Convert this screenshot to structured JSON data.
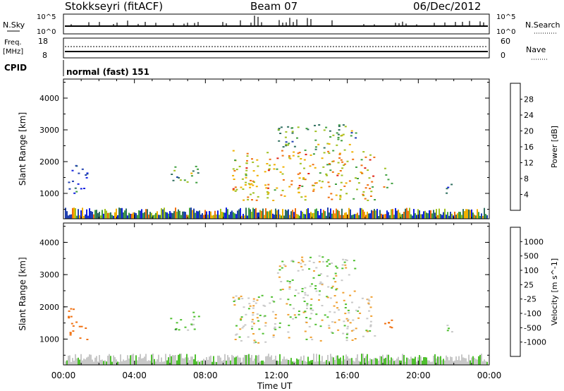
{
  "header": {
    "station": "Stokkseyri (fitACF)",
    "beam": "Beam 07",
    "date": "06/Dec/2012"
  },
  "top_panels": {
    "nsky_label": "N.Sky",
    "nsky_ticks": [
      "10^5",
      "10^0"
    ],
    "nsearch_label": "N.Search",
    "nsearch_ticks": [
      "10^5",
      "10^0"
    ],
    "freq_label_1": "Freq.",
    "freq_label_2": "[MHz]",
    "freq_ticks": [
      "18",
      "8"
    ],
    "nave_label": "Nave",
    "nave_ticks": [
      "60",
      "0"
    ],
    "cpid_label": "CPID",
    "cpid_text": "normal (fast) 151"
  },
  "chart_data": [
    {
      "type": "heatmap",
      "title": "",
      "xlabel": "Time UT",
      "ylabel": "Slant Range [km]",
      "x_ticks": [
        "00:00",
        "04:00",
        "08:00",
        "12:00",
        "16:00",
        "20:00",
        "00:00"
      ],
      "y_ticks": [
        "1000",
        "2000",
        "3000",
        "4000"
      ],
      "ylim": [
        200,
        4600
      ],
      "colorbar": {
        "label": "Power [dB]",
        "ticks": [
          "4",
          "8",
          "12",
          "16",
          "20",
          "24",
          "28"
        ],
        "colors": [
          "#1020e0",
          "#2040b0",
          "#307060",
          "#40a040",
          "#a0c020",
          "#f0b000",
          "#f07010",
          "#e02010"
        ]
      },
      "series": [
        {
          "name": "Power",
          "regions": [
            {
              "t": [
                0.2,
                1.3
              ],
              "r": [
                1000,
                2000
              ],
              "value": 6
            },
            {
              "t": [
                6.0,
                7.6
              ],
              "r": [
                1300,
                1900
              ],
              "value": 14
            },
            {
              "t": [
                9.5,
                17.5
              ],
              "r": [
                800,
                2400
              ],
              "value": 22
            },
            {
              "t": [
                12.0,
                16.5
              ],
              "r": [
                2400,
                3200
              ],
              "value": 14
            },
            {
              "t": [
                18.0,
                18.5
              ],
              "r": [
                1200,
                1900
              ],
              "value": 18
            },
            {
              "t": [
                21.5,
                22.0
              ],
              "r": [
                1000,
                1500
              ],
              "value": 6
            }
          ]
        }
      ]
    },
    {
      "type": "heatmap",
      "title": "",
      "xlabel": "Time UT",
      "ylabel": "Slant Range [km]",
      "x_ticks": [
        "00:00",
        "04:00",
        "08:00",
        "12:00",
        "16:00",
        "20:00",
        "00:00"
      ],
      "y_ticks": [
        "1000",
        "2000",
        "3000",
        "4000"
      ],
      "ylim": [
        200,
        4600
      ],
      "colorbar": {
        "label": "Velocity [m s^-1]",
        "ticks": [
          "1000",
          "500",
          "100",
          "25",
          "-25",
          "-100",
          "-500",
          "-1000"
        ],
        "colors": [
          "#2030c0",
          "#305090",
          "#307040",
          "#50c030",
          "#c8c8c8",
          "#f0a030",
          "#f07010",
          "#e03010",
          "#e00010"
        ]
      },
      "series": [
        {
          "name": "Velocity",
          "regions": [
            {
              "t": [
                0.2,
                1.3
              ],
              "r": [
                1000,
                2000
              ],
              "value": -200
            },
            {
              "t": [
                6.0,
                7.6
              ],
              "r": [
                1300,
                1900
              ],
              "value": 60
            },
            {
              "t": [
                9.5,
                17.5
              ],
              "r": [
                900,
                2400
              ],
              "value": 0
            },
            {
              "t": [
                12.0,
                16.5
              ],
              "r": [
                2400,
                3600
              ],
              "value": 0
            },
            {
              "t": [
                18.0,
                18.5
              ],
              "r": [
                1200,
                1900
              ],
              "value": -300
            },
            {
              "t": [
                21.5,
                22.0
              ],
              "r": [
                1000,
                1500
              ],
              "value": 40
            }
          ]
        }
      ]
    }
  ]
}
